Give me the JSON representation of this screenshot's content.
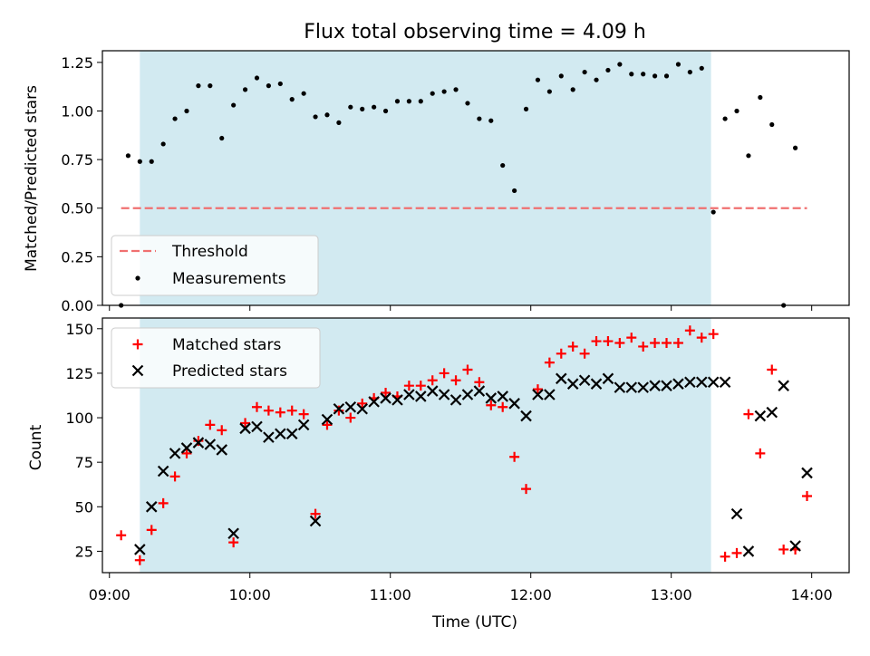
{
  "title": "Flux total observing time = 4.09 h",
  "xlabel": "Time (UTC)",
  "x_ticks": [
    "09:00",
    "10:00",
    "11:00",
    "12:00",
    "13:00",
    "14:00"
  ],
  "colors": {
    "threshold": "#f07070",
    "measurements": "#000000",
    "matched": "#ff0000",
    "predicted": "#000000",
    "span": "#add8e6"
  },
  "chart_data": [
    {
      "type": "scatter",
      "panel": "top",
      "ylabel": "Matched/Predicted stars",
      "ylim": [
        0,
        1.31
      ],
      "y_ticks": [
        "0.00",
        "0.25",
        "0.50",
        "0.75",
        "1.00",
        "1.25"
      ],
      "shaded_span": [
        "09:13",
        "13:17"
      ],
      "threshold": {
        "name": "Threshold",
        "y": 0.5,
        "x_range": [
          "09:05",
          "13:58"
        ]
      },
      "series": [
        {
          "name": "Measurements",
          "points": [
            [
              "09:05",
              0.0
            ],
            [
              "09:08",
              0.77
            ],
            [
              "09:13",
              0.74
            ],
            [
              "09:18",
              0.74
            ],
            [
              "09:23",
              0.83
            ],
            [
              "09:28",
              0.96
            ],
            [
              "09:33",
              1.0
            ],
            [
              "09:38",
              1.13
            ],
            [
              "09:43",
              1.13
            ],
            [
              "09:48",
              0.86
            ],
            [
              "09:53",
              1.03
            ],
            [
              "09:58",
              1.11
            ],
            [
              "10:03",
              1.17
            ],
            [
              "10:08",
              1.13
            ],
            [
              "10:13",
              1.14
            ],
            [
              "10:18",
              1.06
            ],
            [
              "10:23",
              1.09
            ],
            [
              "10:28",
              0.97
            ],
            [
              "10:33",
              0.98
            ],
            [
              "10:38",
              0.94
            ],
            [
              "10:43",
              1.02
            ],
            [
              "10:48",
              1.01
            ],
            [
              "10:53",
              1.02
            ],
            [
              "10:58",
              1.0
            ],
            [
              "11:03",
              1.05
            ],
            [
              "11:08",
              1.05
            ],
            [
              "11:13",
              1.05
            ],
            [
              "11:18",
              1.09
            ],
            [
              "11:23",
              1.1
            ],
            [
              "11:28",
              1.11
            ],
            [
              "11:33",
              1.04
            ],
            [
              "11:38",
              0.96
            ],
            [
              "11:43",
              0.95
            ],
            [
              "11:48",
              0.72
            ],
            [
              "11:53",
              0.59
            ],
            [
              "11:58",
              1.01
            ],
            [
              "12:03",
              1.16
            ],
            [
              "12:08",
              1.1
            ],
            [
              "12:13",
              1.18
            ],
            [
              "12:18",
              1.11
            ],
            [
              "12:23",
              1.2
            ],
            [
              "12:28",
              1.16
            ],
            [
              "12:33",
              1.21
            ],
            [
              "12:38",
              1.24
            ],
            [
              "12:43",
              1.19
            ],
            [
              "12:48",
              1.19
            ],
            [
              "12:53",
              1.18
            ],
            [
              "12:58",
              1.18
            ],
            [
              "13:03",
              1.24
            ],
            [
              "13:08",
              1.2
            ],
            [
              "13:13",
              1.22
            ],
            [
              "13:18",
              0.48
            ],
            [
              "13:23",
              0.96
            ],
            [
              "13:28",
              1.0
            ],
            [
              "13:33",
              0.77
            ],
            [
              "13:38",
              1.07
            ],
            [
              "13:43",
              0.93
            ],
            [
              "13:48",
              0.0
            ],
            [
              "13:53",
              0.81
            ]
          ]
        }
      ],
      "legend": {
        "position": "lower-left",
        "entries": [
          "Threshold",
          "Measurements"
        ]
      }
    },
    {
      "type": "scatter",
      "panel": "bottom",
      "ylabel": "Count",
      "ylim": [
        13,
        156
      ],
      "y_ticks": [
        "25",
        "50",
        "75",
        "100",
        "125",
        "150"
      ],
      "shaded_span": [
        "09:13",
        "13:17"
      ],
      "series": [
        {
          "name": "Matched stars",
          "marker": "plus",
          "points": [
            [
              "09:05",
              34
            ],
            [
              "09:13",
              20
            ],
            [
              "09:18",
              37
            ],
            [
              "09:23",
              52
            ],
            [
              "09:28",
              67
            ],
            [
              "09:33",
              80
            ],
            [
              "09:38",
              87
            ],
            [
              "09:43",
              96
            ],
            [
              "09:48",
              93
            ],
            [
              "09:53",
              30
            ],
            [
              "09:58",
              97
            ],
            [
              "10:03",
              106
            ],
            [
              "10:08",
              104
            ],
            [
              "10:13",
              103
            ],
            [
              "10:18",
              104
            ],
            [
              "10:23",
              102
            ],
            [
              "10:28",
              46
            ],
            [
              "10:33",
              96
            ],
            [
              "10:38",
              104
            ],
            [
              "10:43",
              100
            ],
            [
              "10:48",
              108
            ],
            [
              "10:53",
              111
            ],
            [
              "10:58",
              114
            ],
            [
              "11:03",
              112
            ],
            [
              "11:08",
              118
            ],
            [
              "11:13",
              118
            ],
            [
              "11:18",
              121
            ],
            [
              "11:23",
              125
            ],
            [
              "11:28",
              121
            ],
            [
              "11:33",
              127
            ],
            [
              "11:38",
              120
            ],
            [
              "11:43",
              107
            ],
            [
              "11:48",
              106
            ],
            [
              "11:53",
              78
            ],
            [
              "11:58",
              60
            ],
            [
              "12:03",
              116
            ],
            [
              "12:08",
              131
            ],
            [
              "12:13",
              136
            ],
            [
              "12:18",
              140
            ],
            [
              "12:23",
              136
            ],
            [
              "12:28",
              143
            ],
            [
              "12:33",
              143
            ],
            [
              "12:38",
              142
            ],
            [
              "12:43",
              145
            ],
            [
              "12:48",
              140
            ],
            [
              "12:53",
              142
            ],
            [
              "12:58",
              142
            ],
            [
              "13:03",
              142
            ],
            [
              "13:08",
              149
            ],
            [
              "13:13",
              145
            ],
            [
              "13:18",
              147
            ],
            [
              "13:23",
              22
            ],
            [
              "13:28",
              24
            ],
            [
              "13:33",
              102
            ],
            [
              "13:38",
              80
            ],
            [
              "13:43",
              127
            ],
            [
              "13:48",
              26
            ],
            [
              "13:53",
              26
            ],
            [
              "13:58",
              56
            ]
          ]
        },
        {
          "name": "Predicted stars",
          "marker": "x",
          "points": [
            [
              "09:13",
              26
            ],
            [
              "09:18",
              50
            ],
            [
              "09:23",
              70
            ],
            [
              "09:28",
              80
            ],
            [
              "09:33",
              83
            ],
            [
              "09:38",
              86
            ],
            [
              "09:43",
              85
            ],
            [
              "09:48",
              82
            ],
            [
              "09:53",
              35
            ],
            [
              "09:58",
              94
            ],
            [
              "10:03",
              95
            ],
            [
              "10:08",
              89
            ],
            [
              "10:13",
              91
            ],
            [
              "10:18",
              91
            ],
            [
              "10:23",
              96
            ],
            [
              "10:28",
              42
            ],
            [
              "10:33",
              99
            ],
            [
              "10:38",
              105
            ],
            [
              "10:43",
              106
            ],
            [
              "10:48",
              105
            ],
            [
              "10:53",
              109
            ],
            [
              "10:58",
              111
            ],
            [
              "11:03",
              110
            ],
            [
              "11:08",
              113
            ],
            [
              "11:13",
              112
            ],
            [
              "11:18",
              115
            ],
            [
              "11:23",
              113
            ],
            [
              "11:28",
              110
            ],
            [
              "11:33",
              113
            ],
            [
              "11:38",
              115
            ],
            [
              "11:43",
              111
            ],
            [
              "11:48",
              112
            ],
            [
              "11:53",
              108
            ],
            [
              "11:58",
              101
            ],
            [
              "12:03",
              113
            ],
            [
              "12:08",
              113
            ],
            [
              "12:13",
              122
            ],
            [
              "12:18",
              119
            ],
            [
              "12:23",
              121
            ],
            [
              "12:28",
              119
            ],
            [
              "12:33",
              122
            ],
            [
              "12:38",
              117
            ],
            [
              "12:43",
              117
            ],
            [
              "12:48",
              117
            ],
            [
              "12:53",
              118
            ],
            [
              "12:58",
              118
            ],
            [
              "13:03",
              119
            ],
            [
              "13:08",
              120
            ],
            [
              "13:13",
              120
            ],
            [
              "13:18",
              120
            ],
            [
              "13:23",
              120
            ],
            [
              "13:28",
              46
            ],
            [
              "13:33",
              25
            ],
            [
              "13:38",
              101
            ],
            [
              "13:43",
              103
            ],
            [
              "13:48",
              118
            ],
            [
              "13:53",
              28
            ],
            [
              "13:58",
              69
            ]
          ]
        }
      ],
      "legend": {
        "position": "upper-left",
        "entries": [
          "Matched stars",
          "Predicted stars"
        ]
      }
    }
  ]
}
